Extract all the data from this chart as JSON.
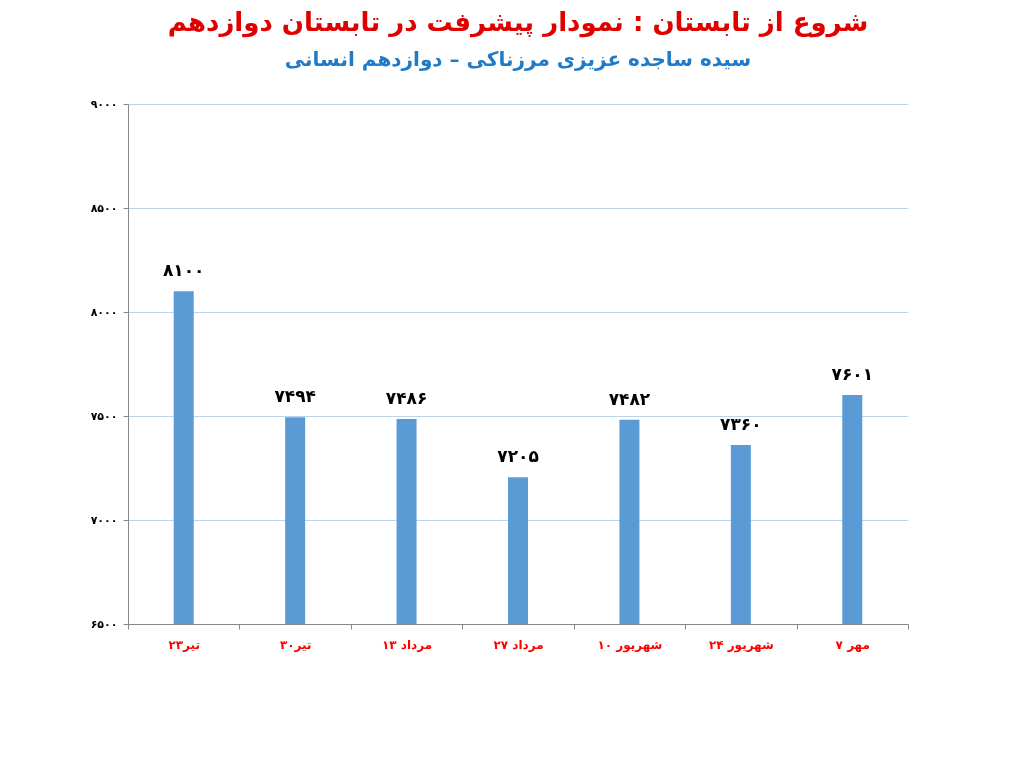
{
  "chart_data": {
    "type": "bar",
    "title": "شروع از تابستان : نمودار پیشرفت در تابستان دوازدهم",
    "subtitle": "سیده ساجده عزیزی مرزناکی – دوازدهم انسانی",
    "categories": [
      "۲۳تیر",
      "۳۰تیر",
      "۱۳ مرداد",
      "۲۷ مرداد",
      "۱۰ شهریور",
      "۲۴ شهریور",
      "۷ مهر"
    ],
    "values": [
      8100,
      7494,
      7486,
      7205,
      7482,
      7360,
      7601
    ],
    "value_labels": [
      "۸۱۰۰",
      "۷۴۹۴",
      "۷۴۸۶",
      "۷۲۰۵",
      "۷۴۸۲",
      "۷۳۶۰",
      "۷۶۰۱"
    ],
    "color": "#5b9bd5",
    "ylim": [
      6500,
      9000
    ],
    "yticks": [
      {
        "value": 6500,
        "label": "۶۵۰۰"
      },
      {
        "value": 7000,
        "label": "۷۰۰۰"
      },
      {
        "value": 7500,
        "label": "۷۵۰۰"
      },
      {
        "value": 8000,
        "label": "۸۰۰۰"
      },
      {
        "value": 8500,
        "label": "۸۵۰۰"
      },
      {
        "value": 9000,
        "label": "۹۰۰۰"
      }
    ],
    "grid": "y"
  }
}
